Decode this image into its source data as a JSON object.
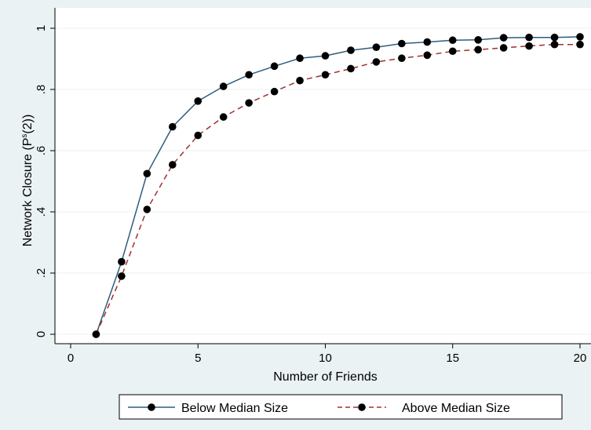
{
  "chart_data": {
    "type": "line",
    "title": "",
    "xlabel": "Number of Friends",
    "ylabel": "Network Closure (P",
    "ylabel_superscript": "s",
    "ylabel_suffix": "(2))",
    "xlim": [
      0,
      20
    ],
    "ylim": [
      0,
      1
    ],
    "x_ticks": [
      0,
      5,
      10,
      15,
      20
    ],
    "x_tick_labels": [
      "0",
      "5",
      "10",
      "15",
      "20"
    ],
    "y_ticks": [
      0,
      0.2,
      0.4,
      0.6,
      0.8,
      1
    ],
    "y_tick_labels": [
      "0",
      ".2",
      ".4",
      ".6",
      ".8",
      "1"
    ],
    "grid": "horizontal",
    "legend_position": "bottom",
    "x": [
      1,
      2,
      3,
      4,
      5,
      6,
      7,
      8,
      9,
      10,
      11,
      12,
      13,
      14,
      15,
      16,
      17,
      18,
      19,
      20
    ],
    "series": [
      {
        "name": "Below Median Size",
        "color": "#2d5d7b",
        "line_style": "solid",
        "values": [
          0,
          0.237,
          0.525,
          0.678,
          0.762,
          0.81,
          0.848,
          0.876,
          0.902,
          0.91,
          0.928,
          0.938,
          0.95,
          0.955,
          0.961,
          0.962,
          0.969,
          0.97,
          0.97,
          0.972
        ]
      },
      {
        "name": "Above Median Size",
        "color": "#a03030",
        "line_style": "dashed",
        "values": [
          0,
          0.19,
          0.408,
          0.554,
          0.65,
          0.71,
          0.756,
          0.793,
          0.829,
          0.848,
          0.868,
          0.89,
          0.902,
          0.912,
          0.925,
          0.93,
          0.936,
          0.942,
          0.947,
          0.947
        ]
      }
    ]
  }
}
